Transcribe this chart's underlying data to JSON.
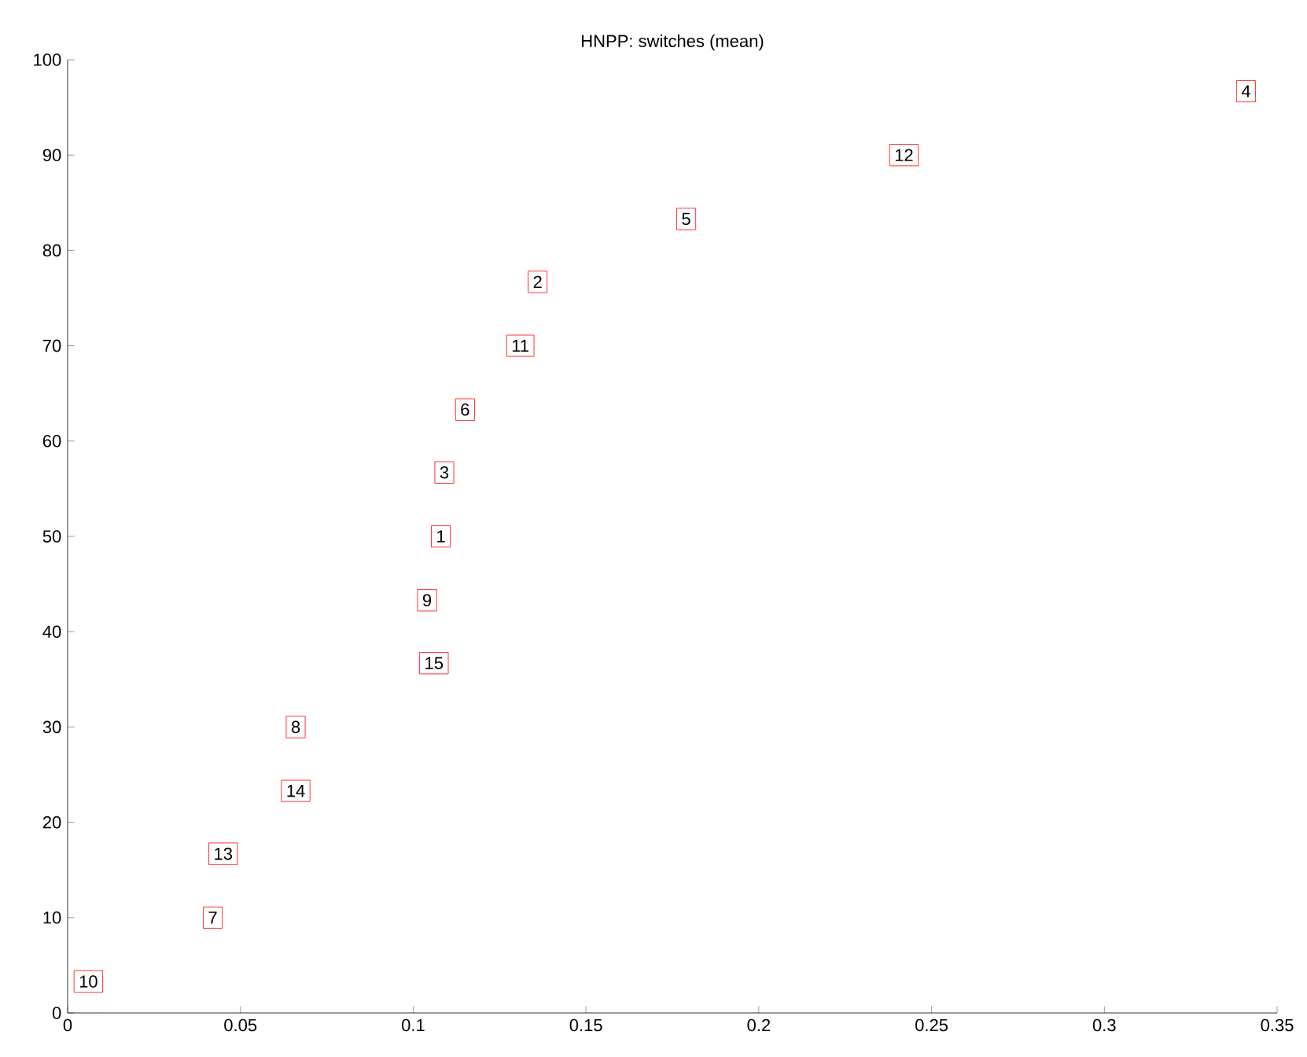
{
  "chart_data": {
    "type": "scatter",
    "title": "HNPP: switches (mean)",
    "annotations": [
      {
        "text": "10",
        "x": 0.006,
        "y": 3.3
      },
      {
        "text": "7",
        "x": 0.042,
        "y": 10
      },
      {
        "text": "13",
        "x": 0.045,
        "y": 16.7
      },
      {
        "text": "14",
        "x": 0.066,
        "y": 23.3
      },
      {
        "text": "8",
        "x": 0.066,
        "y": 30
      },
      {
        "text": "15",
        "x": 0.106,
        "y": 36.7
      },
      {
        "text": "9",
        "x": 0.104,
        "y": 43.3
      },
      {
        "text": "1",
        "x": 0.108,
        "y": 50
      },
      {
        "text": "3",
        "x": 0.109,
        "y": 56.7
      },
      {
        "text": "6",
        "x": 0.115,
        "y": 63.3
      },
      {
        "text": "11",
        "x": 0.131,
        "y": 70
      },
      {
        "text": "2",
        "x": 0.136,
        "y": 76.7
      },
      {
        "text": "5",
        "x": 0.179,
        "y": 83.3
      },
      {
        "text": "12",
        "x": 0.242,
        "y": 90
      },
      {
        "text": "4",
        "x": 0.341,
        "y": 96.7
      }
    ],
    "xlim": [
      0,
      0.35
    ],
    "xticks": [
      0,
      0.05,
      0.1,
      0.15,
      0.2,
      0.25,
      0.3,
      0.35
    ],
    "ylim": [
      0,
      100
    ],
    "yticks": [
      0,
      10,
      20,
      30,
      40,
      50,
      60,
      70,
      80,
      90,
      100
    ],
    "grid": false
  }
}
